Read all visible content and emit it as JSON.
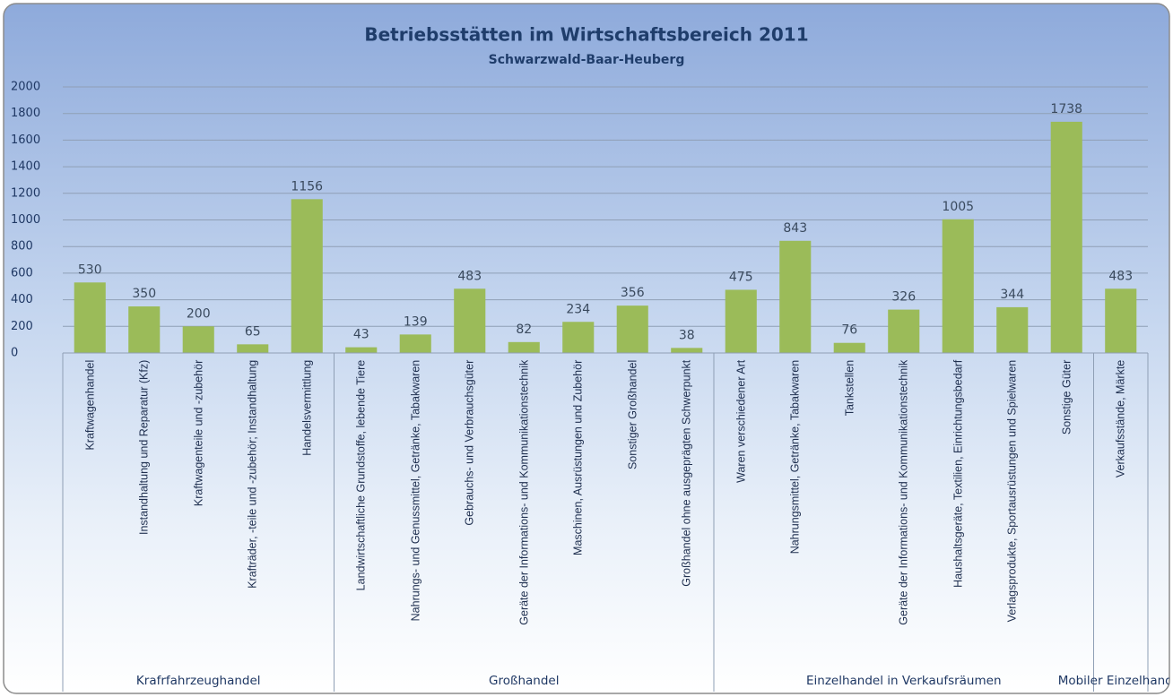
{
  "chart_data": {
    "type": "bar",
    "title": "Betriebsstätten im Wirtschaftsbereich 2011",
    "subtitle": "Schwarzwald-Baar-Heuberg",
    "categories": [
      "Kraftwagenhandel",
      "Instandhaltung und Reparatur (Kfz)",
      "Kraftwagenteile und -zubehör",
      "Krafträder, -teile und -zubehör; Instandhaltung",
      "Handelsvermittlung",
      "Landwirtschaftliche Grundstoffe, lebende Tiere",
      "Nahrungs- und Genussmittel, Getränke, Tabakwaren",
      "Gebrauchs- und Verbrauchsgüter",
      "Geräte der Informations- und Kommunikationstechnik",
      "Maschinen, Ausrüstungen und Zubehör",
      "Sonstiger Großhandel",
      "Großhandel ohne ausgeprägten Schwerpunkt",
      "Waren verschiedener Art",
      "Nahrungsmittel, Getränke, Tabakwaren",
      "Tankstellen",
      "Geräte der Informations- und Kommunikationstechnik",
      "Haushaltsgeräte, Textilien, Einrichtungsbedarf",
      "Verlagsprodukte, Sportausrüstungen und Spielwaren",
      "Sonstige Güter",
      "Verkaufsstände, Märkte"
    ],
    "values": [
      530,
      350,
      200,
      65,
      1156,
      43,
      139,
      483,
      82,
      234,
      356,
      38,
      475,
      843,
      76,
      326,
      1005,
      344,
      1738,
      483
    ],
    "groups": [
      {
        "name": "Krafrfahrzeughandel",
        "count": 5
      },
      {
        "name": "Großhandel",
        "count": 7
      },
      {
        "name": "Einzelhandel in Verkaufsräumen",
        "count": 7
      },
      {
        "name": "Mobiler Einzelhandel",
        "count": 1
      }
    ],
    "color": "#9bbb59",
    "ylim": [
      0,
      2000
    ],
    "yticks": [
      0,
      200,
      400,
      600,
      800,
      1000,
      1200,
      1400,
      1600,
      1800,
      2000
    ],
    "grid": true
  }
}
